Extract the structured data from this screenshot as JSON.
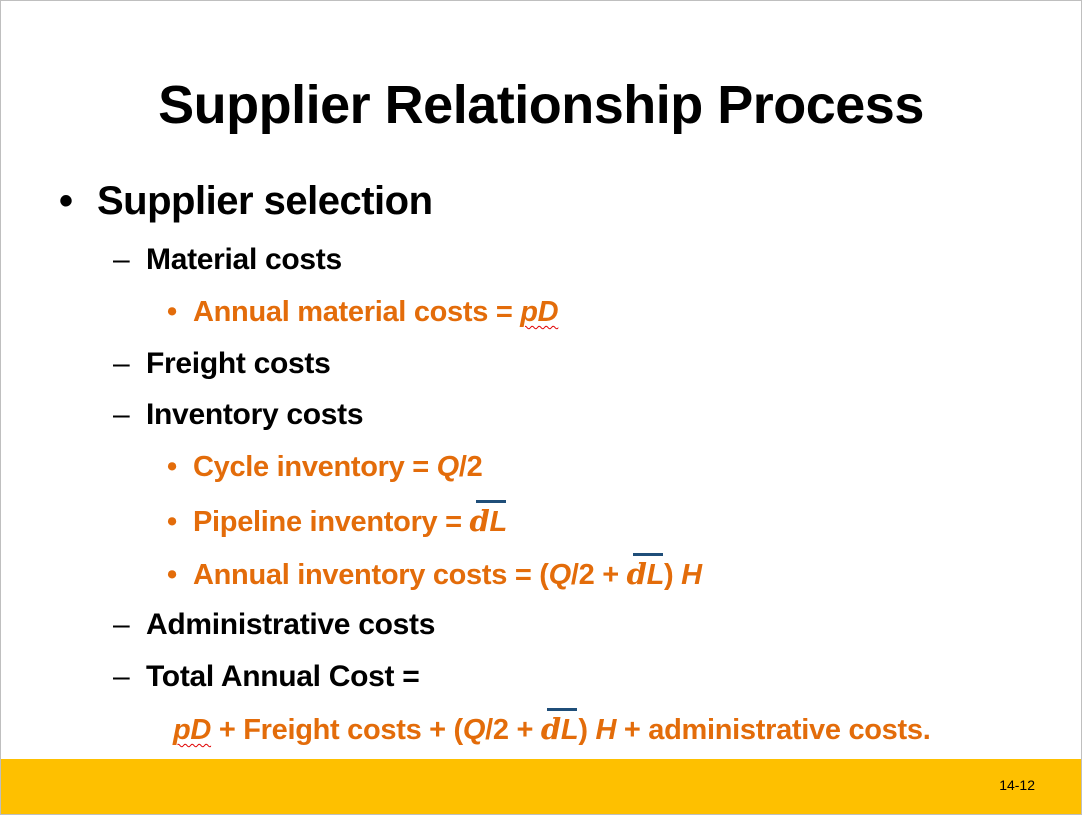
{
  "slide": {
    "title": "Supplier Relationship Process",
    "bullet": "•",
    "dash": "–",
    "main_bullet": "Supplier selection",
    "material_costs": "Material costs",
    "annual_material_prefix": "Annual material costs = ",
    "annual_material_formula": "pD",
    "freight_costs": "Freight costs",
    "inventory_costs": "Inventory costs",
    "cycle_prefix": "Cycle inventory = ",
    "cycle_formula": "Q",
    "cycle_suffix": "/2",
    "pipeline_prefix": "Pipeline inventory = ",
    "pipeline_d": "d",
    "pipeline_l": "L",
    "annual_inv_prefix": "Annual inventory costs = (",
    "annual_inv_q": "Q",
    "annual_inv_mid": "/2 + ",
    "annual_inv_d": "d",
    "annual_inv_l": "L",
    "annual_inv_close": ") ",
    "annual_inv_h": "H",
    "administrative_costs": "Administrative costs",
    "total_annual_cost": "Total Annual Cost =",
    "total_pd": "pD",
    "total_freight": " + Freight costs + (",
    "total_q": "Q",
    "total_mid": "/2 + ",
    "total_d": "d",
    "total_l": "L",
    "total_close": ") ",
    "total_h": "H",
    "total_admin": " + administrative costs."
  },
  "footer": {
    "page_number": "14-12",
    "bar_color": "#fec000"
  },
  "colors": {
    "accent_orange": "#e36c0a",
    "overbar_blue": "#1f4e79"
  }
}
